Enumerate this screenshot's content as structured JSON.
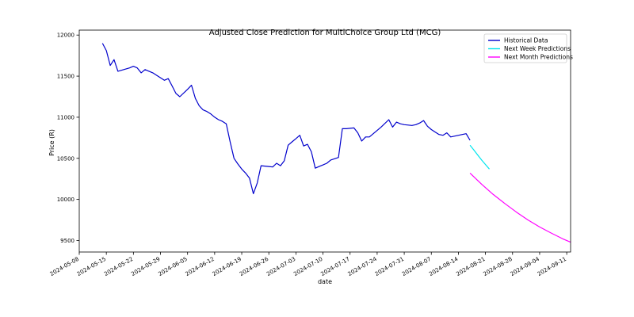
{
  "chart_data": {
    "type": "line",
    "title": "Adjusted Close Prediction for MultiChoice Group Ltd (MCG)",
    "xlabel": "date",
    "ylabel": "Price (R)",
    "xlim": [
      "2024-05-08",
      "2024-09-12"
    ],
    "ylim": [
      9360,
      12060
    ],
    "x_ticks": [
      "2024-05-08",
      "2024-05-15",
      "2024-05-22",
      "2024-05-29",
      "2024-06-05",
      "2024-06-12",
      "2024-06-19",
      "2024-06-26",
      "2024-07-03",
      "2024-07-10",
      "2024-07-17",
      "2024-07-24",
      "2024-07-31",
      "2024-08-07",
      "2024-08-14",
      "2024-08-21",
      "2024-08-28",
      "2024-09-04",
      "2024-09-11"
    ],
    "y_ticks": [
      9500,
      10000,
      10500,
      11000,
      11500,
      12000
    ],
    "legend_position": "top-right",
    "grid": false,
    "series": [
      {
        "name": "Historical Data",
        "color": "#0000cc",
        "points": [
          [
            "2024-05-14",
            11900
          ],
          [
            "2024-05-15",
            11810
          ],
          [
            "2024-05-16",
            11630
          ],
          [
            "2024-05-17",
            11700
          ],
          [
            "2024-05-18",
            11560
          ],
          [
            "2024-05-21",
            11600
          ],
          [
            "2024-05-22",
            11620
          ],
          [
            "2024-05-23",
            11600
          ],
          [
            "2024-05-24",
            11540
          ],
          [
            "2024-05-25",
            11580
          ],
          [
            "2024-05-27",
            11540
          ],
          [
            "2024-05-28",
            11510
          ],
          [
            "2024-05-30",
            11450
          ],
          [
            "2024-05-31",
            11470
          ],
          [
            "2024-06-01",
            11380
          ],
          [
            "2024-06-02",
            11290
          ],
          [
            "2024-06-03",
            11250
          ],
          [
            "2024-06-05",
            11340
          ],
          [
            "2024-06-06",
            11390
          ],
          [
            "2024-06-07",
            11230
          ],
          [
            "2024-06-08",
            11140
          ],
          [
            "2024-06-09",
            11090
          ],
          [
            "2024-06-10",
            11070
          ],
          [
            "2024-06-11",
            11040
          ],
          [
            "2024-06-12",
            11000
          ],
          [
            "2024-06-13",
            10970
          ],
          [
            "2024-06-14",
            10950
          ],
          [
            "2024-06-15",
            10920
          ],
          [
            "2024-06-16",
            10700
          ],
          [
            "2024-06-17",
            10500
          ],
          [
            "2024-06-18",
            10430
          ],
          [
            "2024-06-19",
            10370
          ],
          [
            "2024-06-20",
            10320
          ],
          [
            "2024-06-21",
            10260
          ],
          [
            "2024-06-22",
            10070
          ],
          [
            "2024-06-23",
            10200
          ],
          [
            "2024-06-24",
            10410
          ],
          [
            "2024-06-25",
            10405
          ],
          [
            "2024-06-26",
            10400
          ],
          [
            "2024-06-27",
            10395
          ],
          [
            "2024-06-28",
            10440
          ],
          [
            "2024-06-29",
            10410
          ],
          [
            "2024-06-30",
            10470
          ],
          [
            "2024-07-01",
            10660
          ],
          [
            "2024-07-02",
            10700
          ],
          [
            "2024-07-03",
            10740
          ],
          [
            "2024-07-04",
            10780
          ],
          [
            "2024-07-05",
            10650
          ],
          [
            "2024-07-06",
            10670
          ],
          [
            "2024-07-07",
            10580
          ],
          [
            "2024-07-08",
            10380
          ],
          [
            "2024-07-09",
            10400
          ],
          [
            "2024-07-10",
            10420
          ],
          [
            "2024-07-11",
            10440
          ],
          [
            "2024-07-12",
            10480
          ],
          [
            "2024-07-14",
            10510
          ],
          [
            "2024-07-15",
            10860
          ],
          [
            "2024-07-16",
            10860
          ],
          [
            "2024-07-18",
            10870
          ],
          [
            "2024-07-19",
            10810
          ],
          [
            "2024-07-20",
            10710
          ],
          [
            "2024-07-21",
            10760
          ],
          [
            "2024-07-22",
            10760
          ],
          [
            "2024-07-23",
            10800
          ],
          [
            "2024-07-25",
            10880
          ],
          [
            "2024-07-27",
            10970
          ],
          [
            "2024-07-28",
            10880
          ],
          [
            "2024-07-29",
            10940
          ],
          [
            "2024-07-30",
            10920
          ],
          [
            "2024-07-31",
            10910
          ],
          [
            "2024-08-02",
            10900
          ],
          [
            "2024-08-03",
            10910
          ],
          [
            "2024-08-04",
            10930
          ],
          [
            "2024-08-05",
            10960
          ],
          [
            "2024-08-06",
            10890
          ],
          [
            "2024-08-07",
            10850
          ],
          [
            "2024-08-08",
            10820
          ],
          [
            "2024-08-09",
            10790
          ],
          [
            "2024-08-10",
            10780
          ],
          [
            "2024-08-11",
            10810
          ],
          [
            "2024-08-12",
            10760
          ],
          [
            "2024-08-15",
            10790
          ],
          [
            "2024-08-16",
            10800
          ],
          [
            "2024-08-17",
            10720
          ]
        ]
      },
      {
        "name": "Next Week Predictions",
        "color": "#00e5ee",
        "points": [
          [
            "2024-08-17",
            10660
          ],
          [
            "2024-08-18",
            10600
          ],
          [
            "2024-08-19",
            10540
          ],
          [
            "2024-08-20",
            10480
          ],
          [
            "2024-08-21",
            10425
          ],
          [
            "2024-08-22",
            10370
          ]
        ]
      },
      {
        "name": "Next Month Predictions",
        "color": "#ff00ff",
        "points": [
          [
            "2024-08-17",
            10320
          ],
          [
            "2024-08-20",
            10185
          ],
          [
            "2024-08-23",
            10060
          ],
          [
            "2024-08-26",
            9950
          ],
          [
            "2024-08-29",
            9845
          ],
          [
            "2024-09-01",
            9750
          ],
          [
            "2024-09-04",
            9665
          ],
          [
            "2024-09-07",
            9590
          ],
          [
            "2024-09-10",
            9520
          ],
          [
            "2024-09-12",
            9480
          ]
        ]
      }
    ]
  }
}
